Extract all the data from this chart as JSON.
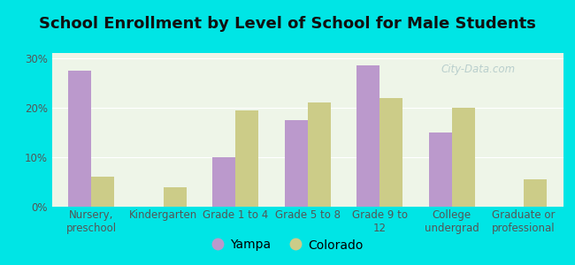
{
  "title": "School Enrollment by Level of School for Male Students",
  "categories": [
    "Nursery,\npreschool",
    "Kindergarten",
    "Grade 1 to 4",
    "Grade 5 to 8",
    "Grade 9 to\n12",
    "College\nundergrad",
    "Graduate or\nprofessional"
  ],
  "yampa": [
    27.5,
    0,
    10.0,
    17.5,
    28.5,
    15.0,
    0
  ],
  "colorado": [
    6.0,
    4.0,
    19.5,
    21.0,
    22.0,
    20.0,
    5.5
  ],
  "yampa_color": "#bb99cc",
  "colorado_color": "#cccc88",
  "background_outer": "#00e5e5",
  "background_inner": "#eef5e8",
  "yticks": [
    0,
    10,
    20,
    30
  ],
  "ylim": [
    0,
    31
  ],
  "bar_width": 0.32,
  "title_fontsize": 13,
  "tick_fontsize": 8.5,
  "legend_fontsize": 10,
  "watermark": "City-Data.com"
}
